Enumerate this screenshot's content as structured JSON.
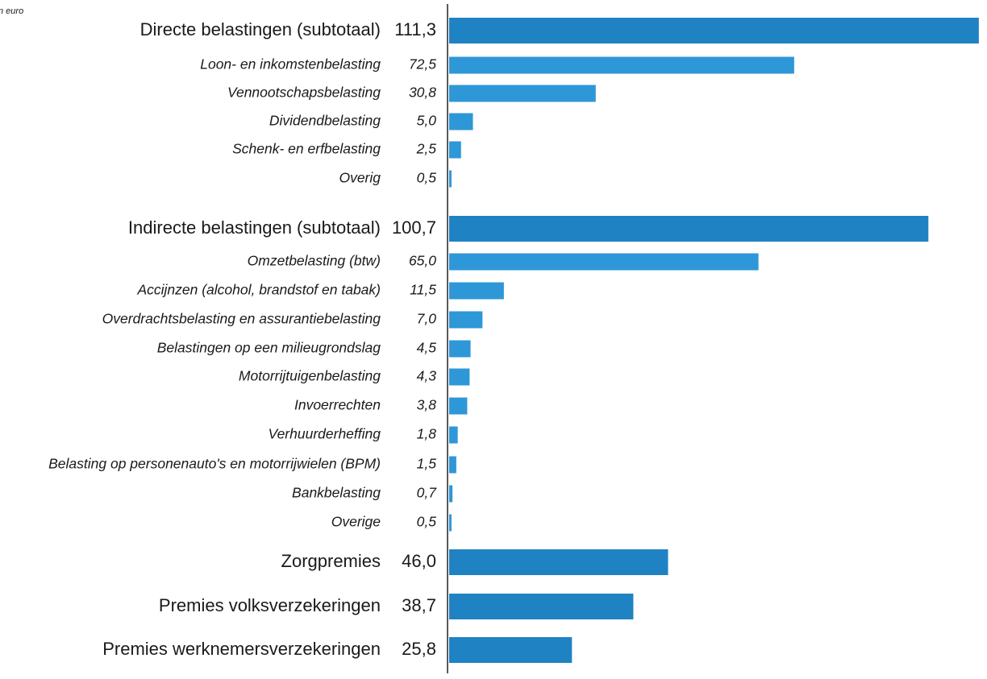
{
  "chart_data": {
    "type": "bar",
    "orientation": "horizontal",
    "subtitle": "n euro",
    "categories": [
      "Directe belastingen (subtotaal)",
      "Loon- en inkomstenbelasting",
      "Vennootschapsbelasting",
      "Dividendbelasting",
      "Schenk- en erfbelasting",
      "Overig",
      "Indirecte belastingen (subtotaal)",
      "Omzetbelasting (btw)",
      "Accijnzen (alcohol, brandstof en tabak)",
      "Overdrachtsbelasting en assurantiebelasting",
      "Belastingen op een milieugrondslag",
      "Motorrijtuigenbelasting",
      "Invoerrechten",
      "Verhuurderheffing",
      "Belasting op personenauto's en motorrijwielen (BPM)",
      "Bankbelasting",
      "Overige",
      "Zorgpremies",
      "Premies volksverzekeringen",
      "Premies werknemersverzekeringen"
    ],
    "values": [
      111.3,
      72.5,
      30.8,
      5.0,
      2.5,
      0.5,
      100.7,
      65.0,
      11.5,
      7.0,
      4.5,
      4.3,
      3.8,
      1.8,
      1.5,
      0.7,
      0.5,
      46.0,
      38.7,
      25.8
    ],
    "value_labels": [
      "111,3",
      "72,5",
      "30,8",
      "5,0",
      "2,5",
      "0,5",
      "100,7",
      "65,0",
      "11,5",
      "7,0",
      "4,5",
      "4,3",
      "3,8",
      "1,8",
      "1,5",
      "0,7",
      "0,5",
      "46,0",
      "38,7",
      "25,8"
    ],
    "colors": [
      "#1f82c2",
      "#2e97d8",
      "#2e97d8",
      "#2e97d8",
      "#2e97d8",
      "#2e97d8",
      "#1f82c2",
      "#2e97d8",
      "#2e97d8",
      "#2e97d8",
      "#2e97d8",
      "#2e97d8",
      "#2e97d8",
      "#2e97d8",
      "#2e97d8",
      "#2e97d8",
      "#2e97d8",
      "#1f82c2",
      "#1f82c2",
      "#1f82c2"
    ],
    "xlim": [
      0,
      112
    ],
    "grid": false
  }
}
